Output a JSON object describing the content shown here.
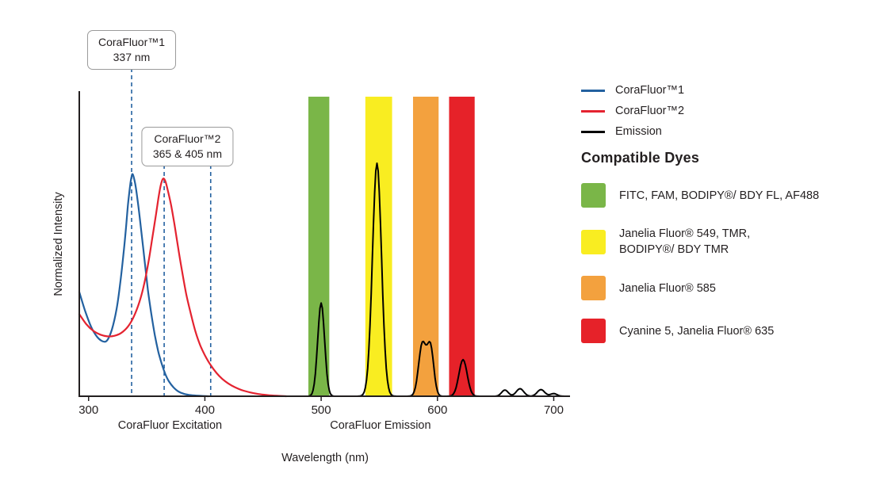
{
  "chart_data": {
    "type": "line",
    "title": "",
    "xlabel": "Wavelength (nm)",
    "ylabel": "Normalized Intensity",
    "x_domain": [
      292,
      714
    ],
    "ylim": [
      0,
      1.1
    ],
    "grid": false,
    "legend_position": "right",
    "x_ticks": [
      300,
      400,
      500,
      600,
      700
    ],
    "axis_sublabels": [
      {
        "text": "CoraFluor Excitation",
        "center_nm": 370
      },
      {
        "text": "CoraFluor Emission",
        "center_nm": 551
      }
    ],
    "dashed_line_color": "#2361a0",
    "annotations": [
      {
        "title": "CoraFluor™1",
        "value": "337 nm",
        "lines_nm": [
          337
        ]
      },
      {
        "title": "CoraFluor™2",
        "value": "365 & 405 nm",
        "lines_nm": [
          365,
          405
        ]
      }
    ],
    "bands": [
      {
        "key": "green",
        "from_nm": 489,
        "to_nm": 507,
        "color": "#7ab648"
      },
      {
        "key": "yellow",
        "from_nm": 538,
        "to_nm": 561,
        "color": "#f9ed21"
      },
      {
        "key": "orange",
        "from_nm": 579,
        "to_nm": 601,
        "color": "#f3a13e"
      },
      {
        "key": "red",
        "from_nm": 610,
        "to_nm": 632,
        "color": "#e62229"
      }
    ],
    "series": [
      {
        "name": "CoraFluor™1",
        "kind": "excitation",
        "color": "#2361a0",
        "points": [
          [
            292,
            0.47
          ],
          [
            297,
            0.385
          ],
          [
            302,
            0.315
          ],
          [
            307,
            0.27
          ],
          [
            312,
            0.248
          ],
          [
            316,
            0.252
          ],
          [
            320,
            0.3
          ],
          [
            324,
            0.39
          ],
          [
            327,
            0.5
          ],
          [
            330,
            0.64
          ],
          [
            332,
            0.75
          ],
          [
            334,
            0.87
          ],
          [
            336,
            0.96
          ],
          [
            337,
            0.99
          ],
          [
            338,
            1.0
          ],
          [
            340,
            0.96
          ],
          [
            342,
            0.89
          ],
          [
            345,
            0.76
          ],
          [
            348,
            0.62
          ],
          [
            351,
            0.48
          ],
          [
            354,
            0.37
          ],
          [
            357,
            0.275
          ],
          [
            360,
            0.2
          ],
          [
            363,
            0.145
          ],
          [
            366,
            0.1
          ],
          [
            369,
            0.068
          ],
          [
            373,
            0.04
          ],
          [
            377,
            0.022
          ],
          [
            382,
            0.011
          ],
          [
            388,
            0.005
          ],
          [
            395,
            0.002
          ],
          [
            403,
            0.0
          ]
        ]
      },
      {
        "name": "CoraFluor™2",
        "kind": "excitation",
        "color": "#e42330",
        "points": [
          [
            292,
            0.37
          ],
          [
            298,
            0.325
          ],
          [
            304,
            0.295
          ],
          [
            310,
            0.278
          ],
          [
            316,
            0.27
          ],
          [
            322,
            0.272
          ],
          [
            328,
            0.285
          ],
          [
            334,
            0.315
          ],
          [
            339,
            0.36
          ],
          [
            344,
            0.43
          ],
          [
            348,
            0.51
          ],
          [
            352,
            0.62
          ],
          [
            355,
            0.72
          ],
          [
            358,
            0.82
          ],
          [
            360,
            0.89
          ],
          [
            362,
            0.95
          ],
          [
            364,
            0.98
          ],
          [
            366,
            0.97
          ],
          [
            368,
            0.93
          ],
          [
            371,
            0.86
          ],
          [
            374,
            0.77
          ],
          [
            377,
            0.67
          ],
          [
            380,
            0.575
          ],
          [
            384,
            0.46
          ],
          [
            388,
            0.37
          ],
          [
            392,
            0.29
          ],
          [
            396,
            0.23
          ],
          [
            400,
            0.185
          ],
          [
            405,
            0.14
          ],
          [
            410,
            0.105
          ],
          [
            415,
            0.078
          ],
          [
            420,
            0.058
          ],
          [
            426,
            0.04
          ],
          [
            432,
            0.027
          ],
          [
            439,
            0.017
          ],
          [
            446,
            0.01
          ],
          [
            454,
            0.005
          ],
          [
            462,
            0.002
          ],
          [
            470,
            0.0
          ]
        ]
      },
      {
        "name": "Emission",
        "kind": "emission",
        "color": "#000000",
        "gauss_peaks": [
          {
            "center": 500,
            "height": 0.42,
            "width": 4.2
          },
          {
            "center": 548,
            "height": 1.05,
            "width": 5.5
          },
          {
            "center": 587,
            "height": 0.235,
            "width": 4.5
          },
          {
            "center": 594,
            "height": 0.22,
            "width": 4.0
          },
          {
            "center": 622,
            "height": 0.165,
            "width": 5.0
          },
          {
            "center": 658,
            "height": 0.028,
            "width": 4.0
          },
          {
            "center": 671,
            "height": 0.034,
            "width": 4.5
          },
          {
            "center": 689,
            "height": 0.03,
            "width": 4.5
          },
          {
            "center": 700,
            "height": 0.012,
            "width": 4.0
          }
        ]
      }
    ]
  },
  "legend": {
    "items": [
      {
        "label": "CoraFluor™1",
        "color": "#2361a0"
      },
      {
        "label": "CoraFluor™2",
        "color": "#e42330"
      },
      {
        "label": "Emission",
        "color": "#000000"
      }
    ]
  },
  "dyes": {
    "heading": "Compatible Dyes",
    "items": [
      {
        "label": "FITC, FAM, BODIPY®/ BDY FL, AF488",
        "color": "#7ab648"
      },
      {
        "label": "Janelia Fluor® 549, TMR,\nBODIPY®/ BDY TMR",
        "color": "#f9ed21"
      },
      {
        "label": "Janelia Fluor® 585",
        "color": "#f3a13e"
      },
      {
        "label": "Cyanine 5, Janelia Fluor® 635",
        "color": "#e62229"
      }
    ]
  }
}
